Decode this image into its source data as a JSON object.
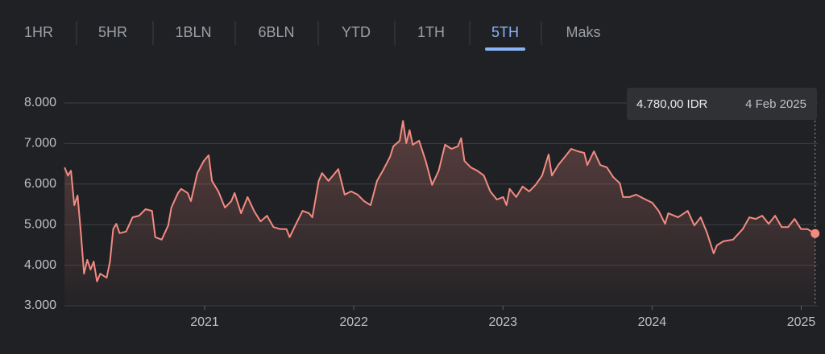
{
  "tabs": [
    "1HR",
    "5HR",
    "1BLN",
    "6BLN",
    "YTD",
    "1TH",
    "5TH",
    "Maks"
  ],
  "active_tab": 6,
  "chart_data": {
    "type": "line",
    "tooltip": {
      "price": "4.780,00 IDR",
      "date": "4 Feb 2025"
    },
    "xlim": [
      2020.06,
      2025.1
    ],
    "xticks": [
      2021,
      2022,
      2023,
      2024,
      2025
    ],
    "ylim": [
      3000,
      8000
    ],
    "yticks": [
      {
        "value": 3000,
        "label": "3.000"
      },
      {
        "value": 4000,
        "label": "4.000"
      },
      {
        "value": 5000,
        "label": "5.000"
      },
      {
        "value": 6000,
        "label": "6.000"
      },
      {
        "value": 7000,
        "label": "7.000"
      },
      {
        "value": 8000,
        "label": "8.000"
      }
    ],
    "grid": true,
    "series": [
      {
        "color": "#f28b82",
        "x": [
          2020.061,
          2020.083,
          2020.104,
          2020.126,
          2020.148,
          2020.17,
          2020.191,
          2020.213,
          2020.235,
          2020.256,
          2020.278,
          2020.3,
          2020.343,
          2020.365,
          2020.387,
          2020.408,
          2020.43,
          2020.473,
          2020.517,
          2020.56,
          2020.604,
          2020.647,
          2020.669,
          2020.712,
          2020.756,
          2020.777,
          2020.821,
          2020.843,
          2020.886,
          2020.908,
          2020.951,
          2020.994,
          2021.027,
          2021.049,
          2021.092,
          2021.136,
          2021.179,
          2021.201,
          2021.244,
          2021.288,
          2021.331,
          2021.375,
          2021.418,
          2021.461,
          2021.505,
          2021.548,
          2021.57,
          2021.613,
          2021.657,
          2021.7,
          2021.722,
          2021.765,
          2021.787,
          2021.83,
          2021.874,
          2021.896,
          2021.939,
          2021.982,
          2022.026,
          2022.069,
          2022.113,
          2022.156,
          2022.2,
          2022.243,
          2022.265,
          2022.308,
          2022.33,
          2022.352,
          2022.374,
          2022.395,
          2022.438,
          2022.482,
          2022.525,
          2022.569,
          2022.612,
          2022.655,
          2022.698,
          2022.72,
          2022.742,
          2022.785,
          2022.828,
          2022.872,
          2022.915,
          2022.959,
          2023.002,
          2023.024,
          2023.045,
          2023.089,
          2023.132,
          2023.176,
          2023.219,
          2023.263,
          2023.306,
          2023.328,
          2023.371,
          2023.415,
          2023.458,
          2023.501,
          2023.545,
          2023.566,
          2023.61,
          2023.653,
          2023.697,
          2023.74,
          2023.784,
          2023.805,
          2023.849,
          2023.892,
          2023.957,
          2024.001,
          2024.044,
          2024.087,
          2024.109,
          2024.174,
          2024.239,
          2024.283,
          2024.326,
          2024.369,
          2024.413,
          2024.435,
          2024.478,
          2024.543,
          2024.608,
          2024.652,
          2024.695,
          2024.738,
          2024.782,
          2024.825,
          2024.869,
          2024.912,
          2024.955,
          2024.999,
          2025.042,
          2025.07,
          2025.093
        ],
        "values": [
          6410,
          6210,
          6330,
          5480,
          5720,
          4790,
          3790,
          4130,
          3890,
          4090,
          3600,
          3790,
          3690,
          4090,
          4890,
          5020,
          4790,
          4830,
          5180,
          5220,
          5380,
          5340,
          4690,
          4630,
          4980,
          5420,
          5780,
          5880,
          5780,
          5580,
          6270,
          6570,
          6710,
          6080,
          5820,
          5420,
          5580,
          5780,
          5280,
          5680,
          5340,
          5080,
          5220,
          4940,
          4890,
          4890,
          4690,
          5020,
          5340,
          5280,
          5180,
          6080,
          6270,
          6080,
          6270,
          6370,
          5740,
          5820,
          5740,
          5580,
          5480,
          6080,
          6370,
          6670,
          6930,
          7070,
          7560,
          7010,
          7330,
          6970,
          7070,
          6570,
          5980,
          6330,
          6970,
          6870,
          6930,
          7130,
          6570,
          6410,
          6330,
          6210,
          5820,
          5620,
          5680,
          5480,
          5880,
          5680,
          5940,
          5820,
          5980,
          6210,
          6730,
          6210,
          6470,
          6670,
          6870,
          6810,
          6770,
          6470,
          6810,
          6470,
          6410,
          6170,
          6020,
          5680,
          5680,
          5740,
          5620,
          5540,
          5340,
          5020,
          5280,
          5180,
          5340,
          4980,
          5180,
          4790,
          4290,
          4490,
          4590,
          4630,
          4890,
          5180,
          5140,
          5220,
          5020,
          5220,
          4940,
          4940,
          5140,
          4890,
          4890,
          4830,
          4780
        ]
      }
    ]
  }
}
